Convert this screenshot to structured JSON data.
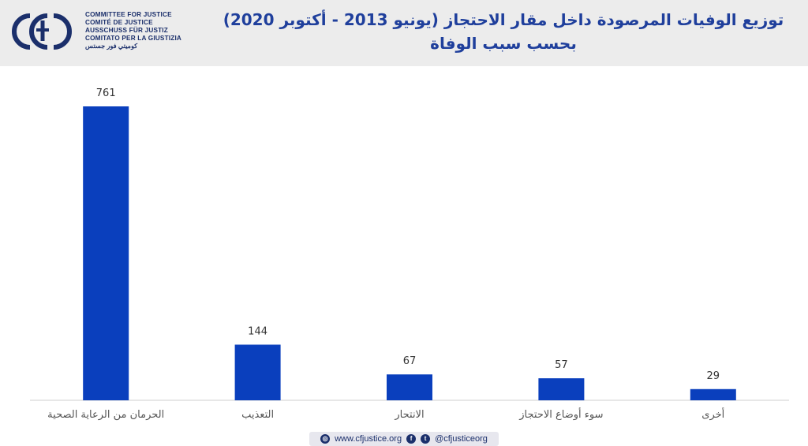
{
  "header": {
    "logo_lines": [
      "COMMITTEE FOR JUSTICE",
      "COMITÉ DE JUSTICE",
      "AUSSCHUSS FÜR JUSTIZ",
      "COMITATO PER LA GIUSTIZIA",
      "كوميتي فور جستس"
    ],
    "title": "توزيع الوفيات المرصودة داخل مقار الاحتجاز (يونيو 2013 - أكتوبر 2020)",
    "subtitle": "بحسب سبب الوفاة"
  },
  "colors": {
    "bar": "#0a3fbd",
    "title": "#1f3f9c",
    "header_bg": "#ececec"
  },
  "chart_data": {
    "type": "bar",
    "categories": [
      "الحرمان من الرعاية الصحية",
      "التعذيب",
      "الانتحار",
      "سوء أوضاع الاحتجاز",
      "أخرى"
    ],
    "values": [
      761,
      144,
      67,
      57,
      29
    ],
    "data_labels": [
      "761",
      "144",
      "67",
      "57",
      "29"
    ],
    "ylim": [
      0,
      800
    ],
    "grid": false,
    "legend": "none"
  },
  "footer": {
    "website": "www.cfjustice.org",
    "handle": "@cfjusticeorg",
    "icons": [
      "globe-icon",
      "facebook-icon",
      "twitter-icon"
    ]
  }
}
